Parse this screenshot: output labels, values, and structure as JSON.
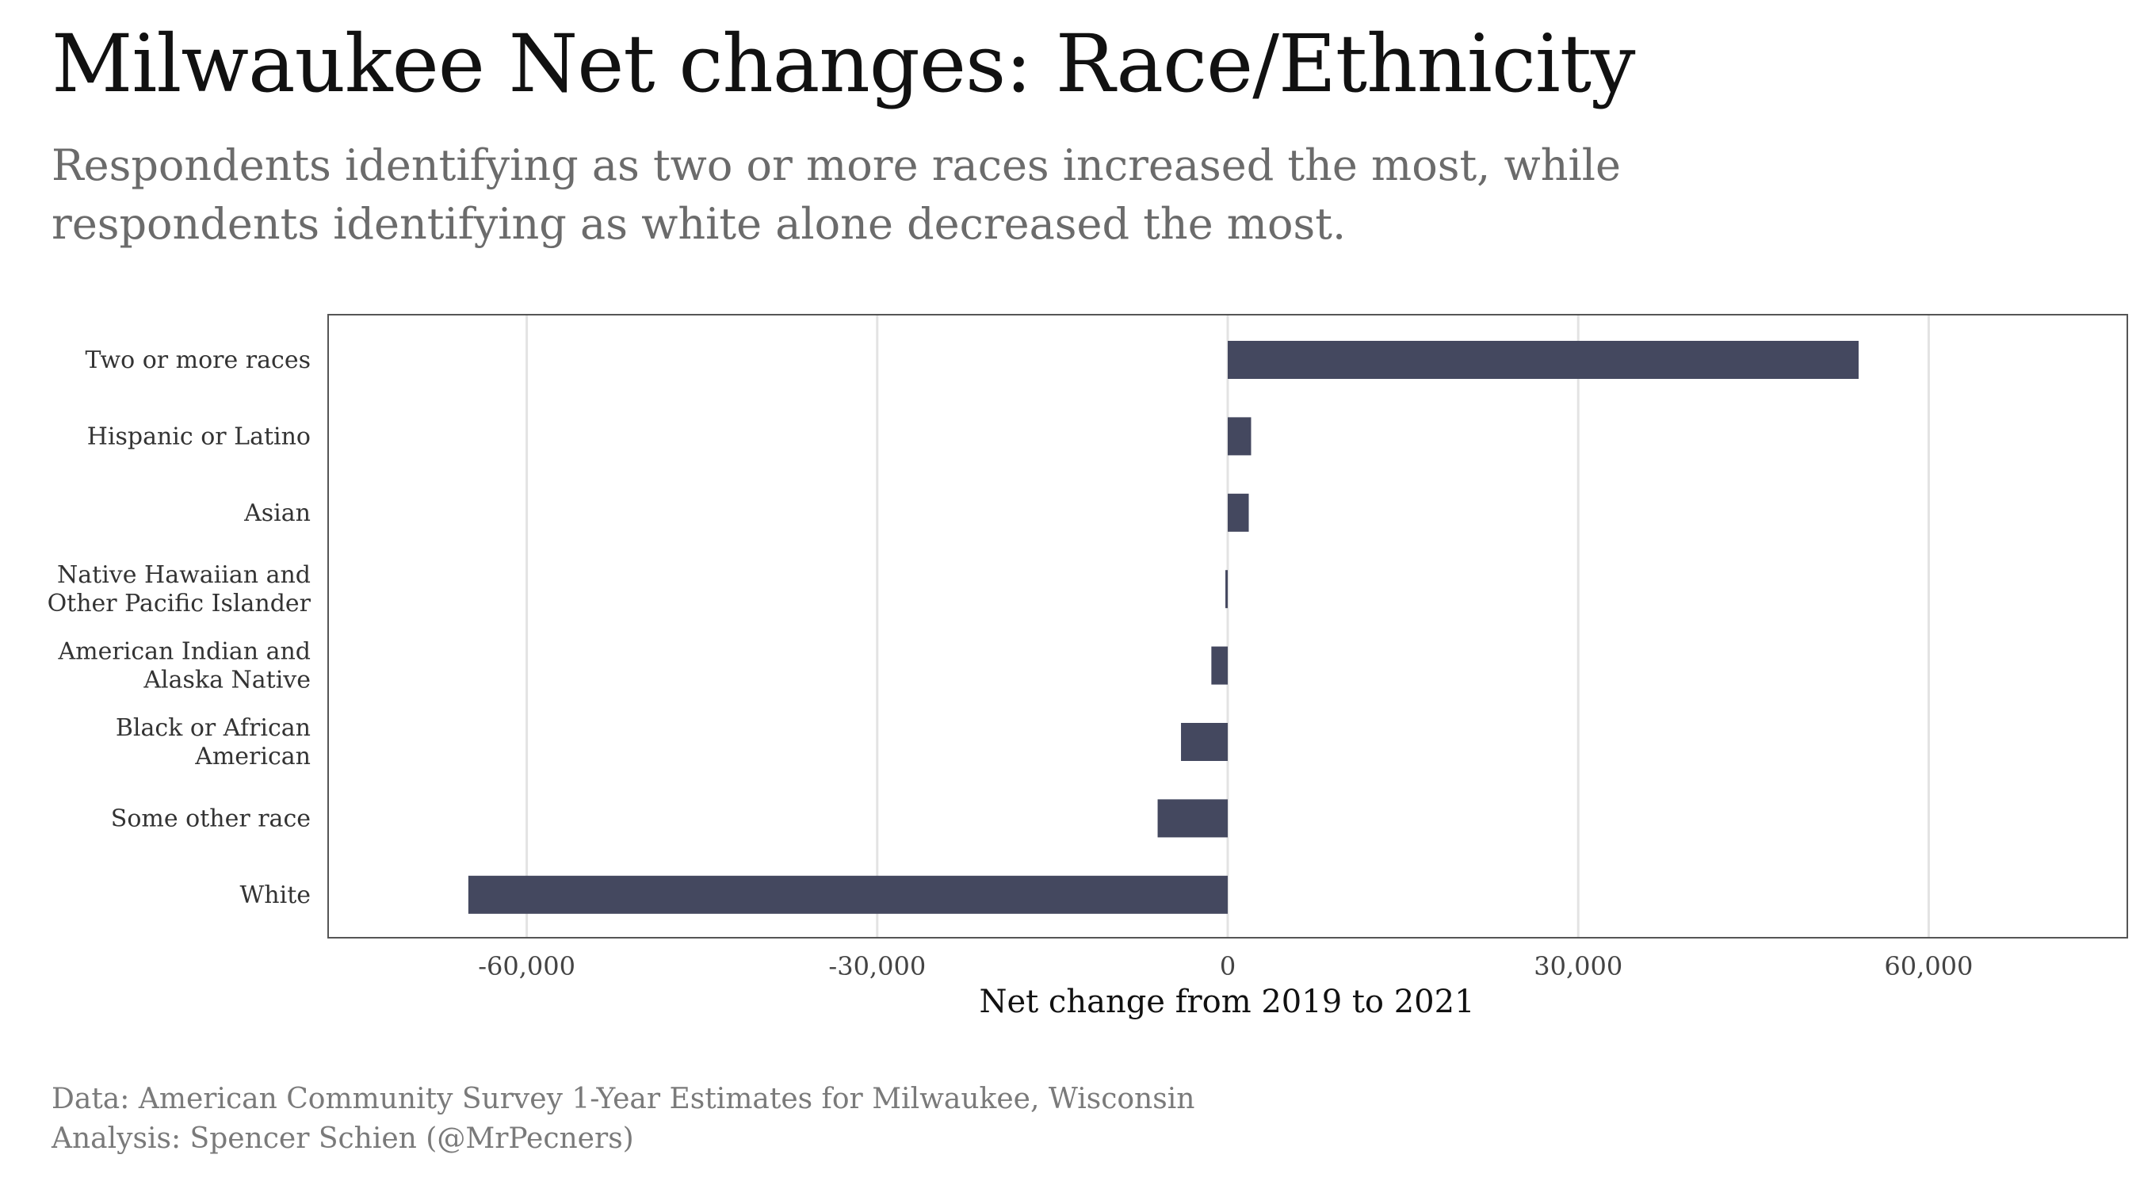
{
  "title": "Milwaukee Net changes: Race/Ethnicity",
  "subtitle": "Respondents identifying as two or more races increased the most, while respondents identifying as white alone decreased the most.",
  "caption": {
    "line1": "Data: American Community Survey 1-Year Estimates for Milwaukee, Wisconsin",
    "line2": "Analysis: Spencer Schien (@MrPecners)"
  },
  "chart_data": {
    "type": "bar",
    "orientation": "horizontal",
    "categories": [
      [
        "Two or more races"
      ],
      [
        "Hispanic or Latino"
      ],
      [
        "Asian"
      ],
      [
        "Native Hawaiian and",
        "Other Pacific Islander"
      ],
      [
        "American Indian and",
        "Alaska Native"
      ],
      [
        "Black or African",
        "American"
      ],
      [
        "Some other race"
      ],
      [
        "White"
      ]
    ],
    "values": [
      54000,
      2000,
      1800,
      -200,
      -1400,
      -4000,
      -6000,
      -65000
    ],
    "xlabel": "Net change from 2019 to 2021",
    "ylabel": "",
    "xlim": [
      -77000,
      77000
    ],
    "xticks": [
      -60000,
      -30000,
      0,
      30000,
      60000
    ],
    "xtick_labels": [
      "-60,000",
      "-30,000",
      "0",
      "30,000",
      "60,000"
    ],
    "grid": "vertical",
    "colors": {
      "bar": "#44485f",
      "grid": "#e3e3e3",
      "frame": "#555555"
    }
  }
}
